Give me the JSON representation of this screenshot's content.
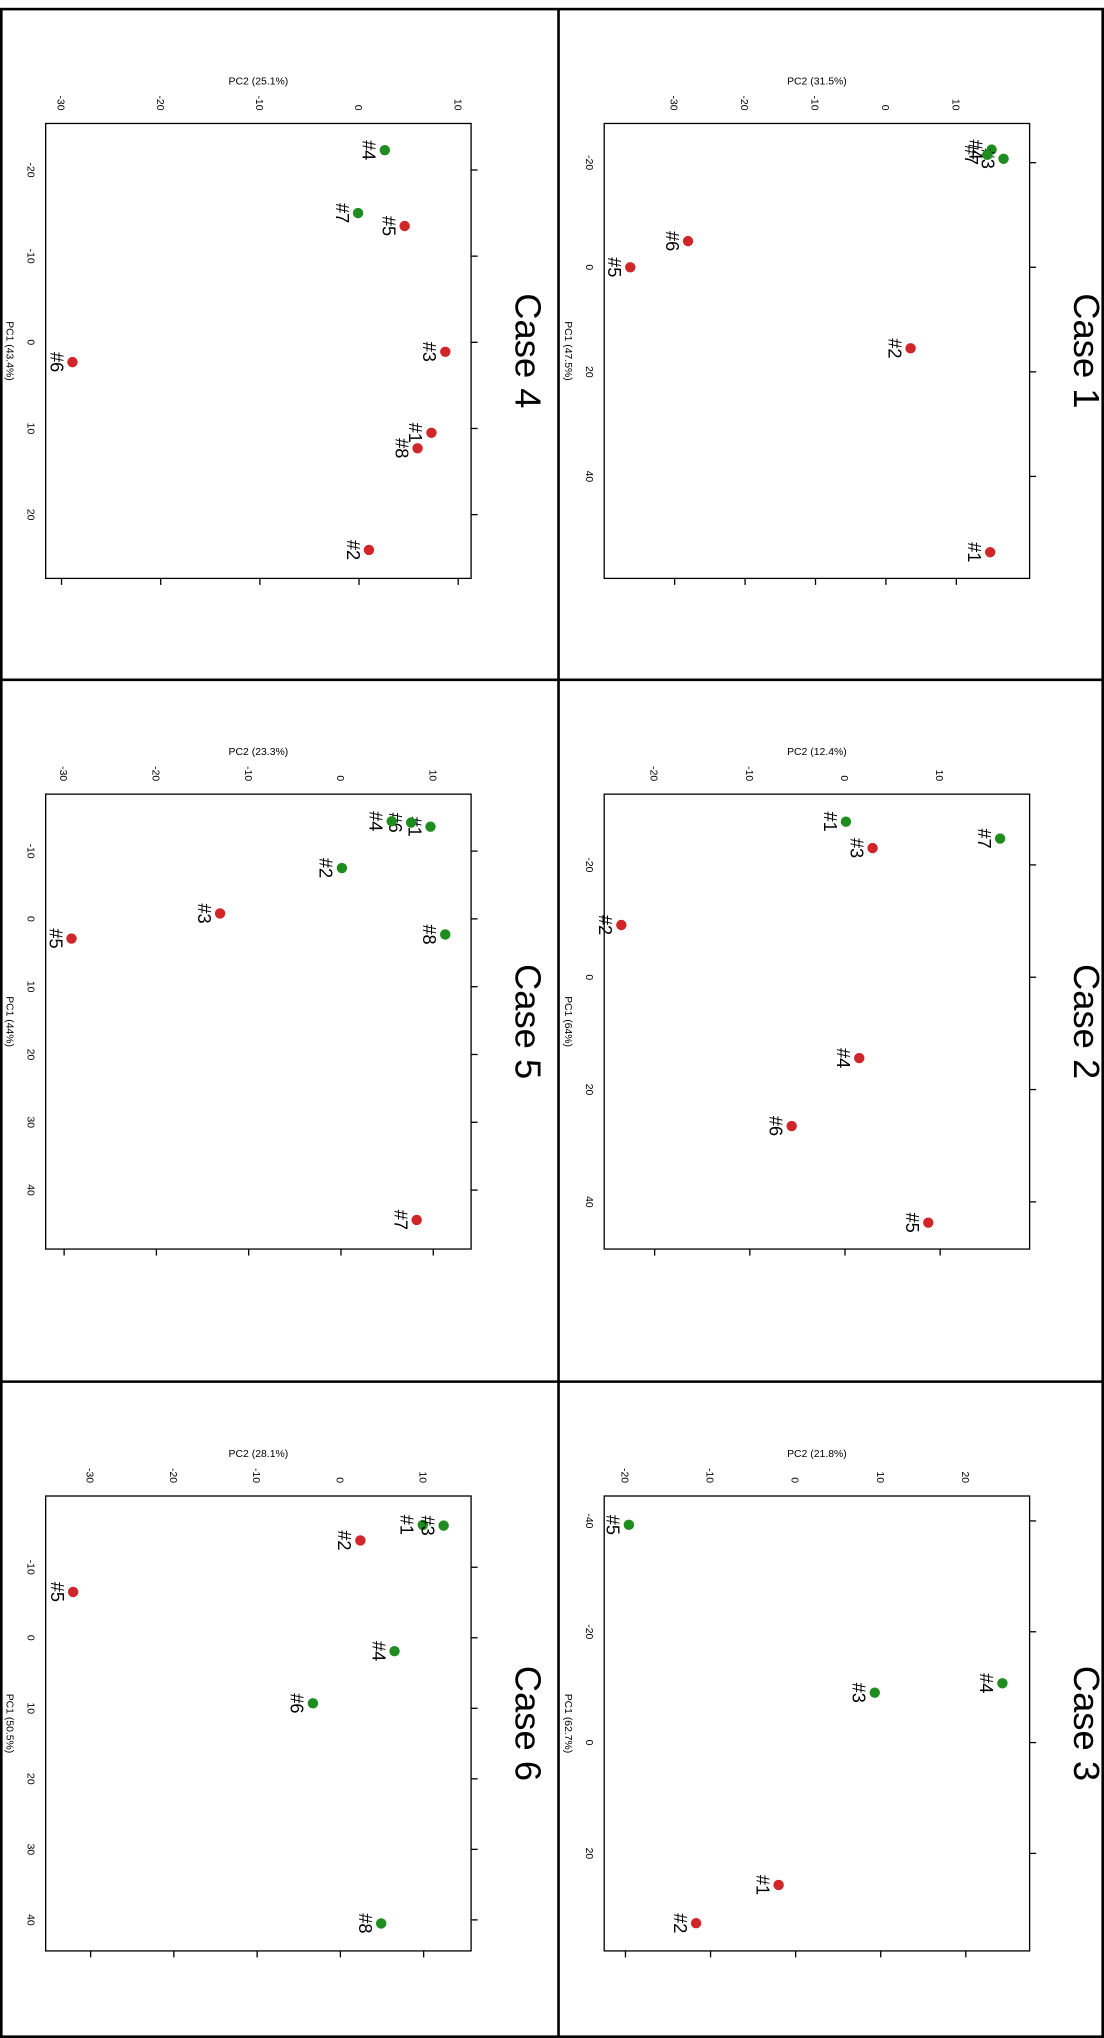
{
  "chart_data": [
    {
      "type": "scatter",
      "title": "Case 1",
      "x_label": "PC1 (47.5%)",
      "y_label": "PC2 (31.5%)",
      "xlim": [
        -27.5,
        59.5
      ],
      "ylim": [
        -40,
        20.4
      ],
      "xticks": [
        -20,
        0,
        20,
        40
      ],
      "yticks": [
        -30,
        -20,
        -10,
        0,
        10
      ],
      "labels": [
        "#4",
        "#3",
        "#7",
        "#6",
        "#5",
        "#2",
        "#1"
      ],
      "x": [
        -22.5,
        -20.75,
        -21.5,
        -5,
        0,
        15.5,
        54.5
      ],
      "y": [
        15,
        16.7,
        14.4,
        -28.1,
        -36.3,
        3.5,
        14.8
      ],
      "colors": [
        "#1e8c1e",
        "#1e8c1e",
        "#1e8c1e",
        "#d0262a",
        "#d0262a",
        "#d0262a",
        "#d0262a"
      ]
    },
    {
      "type": "scatter",
      "title": "Case 2",
      "x_label": "PC1 (64%)",
      "y_label": "PC2 (12.4%)",
      "xlim": [
        -32.6,
        48.4
      ],
      "ylim": [
        -25.3,
        19.4
      ],
      "xticks": [
        -20,
        0,
        20,
        40
      ],
      "yticks": [
        -20,
        -10,
        0,
        10
      ],
      "labels": [
        "#7",
        "#1",
        "#3",
        "#2",
        "#4",
        "#6",
        "#5"
      ],
      "x": [
        -24.7,
        -27.7,
        -23,
        -9.3,
        14.4,
        26.5,
        43.7
      ],
      "y": [
        16.3,
        0.1,
        2.9,
        -23.5,
        1.5,
        -5.6,
        8.75
      ],
      "colors": [
        "#1e8c1e",
        "#1e8c1e",
        "#d0262a",
        "#d0262a",
        "#d0262a",
        "#d0262a",
        "#d0262a"
      ]
    },
    {
      "type": "scatter",
      "title": "Case 3",
      "x_label": "PC1 (62.7%)",
      "y_label": "PC2 (21.8%)",
      "xlim": [
        -44.5,
        37.6
      ],
      "ylim": [
        -22.5,
        27.5
      ],
      "xticks": [
        -40,
        -20,
        0,
        20
      ],
      "yticks": [
        -20,
        -10,
        0,
        10,
        20
      ],
      "labels": [
        "#5",
        "#4",
        "#3",
        "#1",
        "#2"
      ],
      "x": [
        -39.3,
        -10.7,
        -9,
        25.7,
        32.6
      ],
      "y": [
        -19.6,
        24.3,
        9.3,
        -2,
        -11.7
      ],
      "colors": [
        "#1e8c1e",
        "#1e8c1e",
        "#1e8c1e",
        "#d0262a",
        "#d0262a"
      ]
    },
    {
      "type": "scatter",
      "title": "Case 4",
      "x_label": "PC1 (43.4%)",
      "y_label": "PC2 (25.1%)",
      "xlim": [
        -25.4,
        27.4
      ],
      "ylim": [
        -31.6,
        11.3
      ],
      "xticks": [
        -20,
        -10,
        0,
        10,
        20
      ],
      "yticks": [
        -30,
        -20,
        -10,
        0,
        10
      ],
      "labels": [
        "#4",
        "#7",
        "#5",
        "#3",
        "#6",
        "#1",
        "#8",
        "#2"
      ],
      "x": [
        -22.3,
        -15,
        -13.5,
        1.1,
        2.3,
        10.5,
        12.3,
        24.1
      ],
      "y": [
        2.6,
        -0.1,
        4.6,
        8.7,
        -28.9,
        7.3,
        5.9,
        1
      ],
      "colors": [
        "#1e8c1e",
        "#1e8c1e",
        "#d0262a",
        "#d0262a",
        "#d0262a",
        "#d0262a",
        "#d0262a",
        "#d0262a"
      ]
    },
    {
      "type": "scatter",
      "title": "Case 5",
      "x_label": "PC1 (44%)",
      "y_label": "PC2 (23.3%)",
      "xlim": [
        -18.4,
        48.7
      ],
      "ylim": [
        -32,
        14.1
      ],
      "xticks": [
        -10,
        0,
        10,
        20,
        30,
        40
      ],
      "yticks": [
        -30,
        -20,
        -10,
        0,
        10
      ],
      "labels": [
        "#1",
        "#6",
        "#4",
        "#2",
        "#8",
        "#3",
        "#5",
        "#7"
      ],
      "x": [
        -13.6,
        -14.2,
        -14.4,
        -7.5,
        2.3,
        -0.8,
        2.9,
        44.4
      ],
      "y": [
        9.7,
        7.6,
        5.5,
        0.1,
        11.3,
        -13.1,
        -29.2,
        8.2
      ],
      "colors": [
        "#1e8c1e",
        "#1e8c1e",
        "#1e8c1e",
        "#1e8c1e",
        "#1e8c1e",
        "#d0262a",
        "#d0262a",
        "#d0262a"
      ]
    },
    {
      "type": "scatter",
      "title": "Case 6",
      "x_label": "PC1 (50.5%)",
      "y_label": "PC2 (28.1%)",
      "xlim": [
        -20.1,
        44.4
      ],
      "ylim": [
        -35.4,
        15.7
      ],
      "xticks": [
        -10,
        0,
        10,
        20,
        30,
        40
      ],
      "yticks": [
        -30,
        -20,
        -10,
        0,
        10
      ],
      "labels": [
        "#1",
        "#3",
        "#2",
        "#5",
        "#4",
        "#6",
        "#8"
      ],
      "x": [
        -16,
        -15.9,
        -13.8,
        -6.5,
        1.9,
        9.3,
        40.5
      ],
      "y": [
        9.9,
        12.4,
        2.4,
        -32.1,
        6.5,
        -3.3,
        4.9
      ],
      "colors": [
        "#1e8c1e",
        "#1e8c1e",
        "#d0262a",
        "#d0262a",
        "#1e8c1e",
        "#1e8c1e",
        "#1e8c1e"
      ]
    }
  ]
}
